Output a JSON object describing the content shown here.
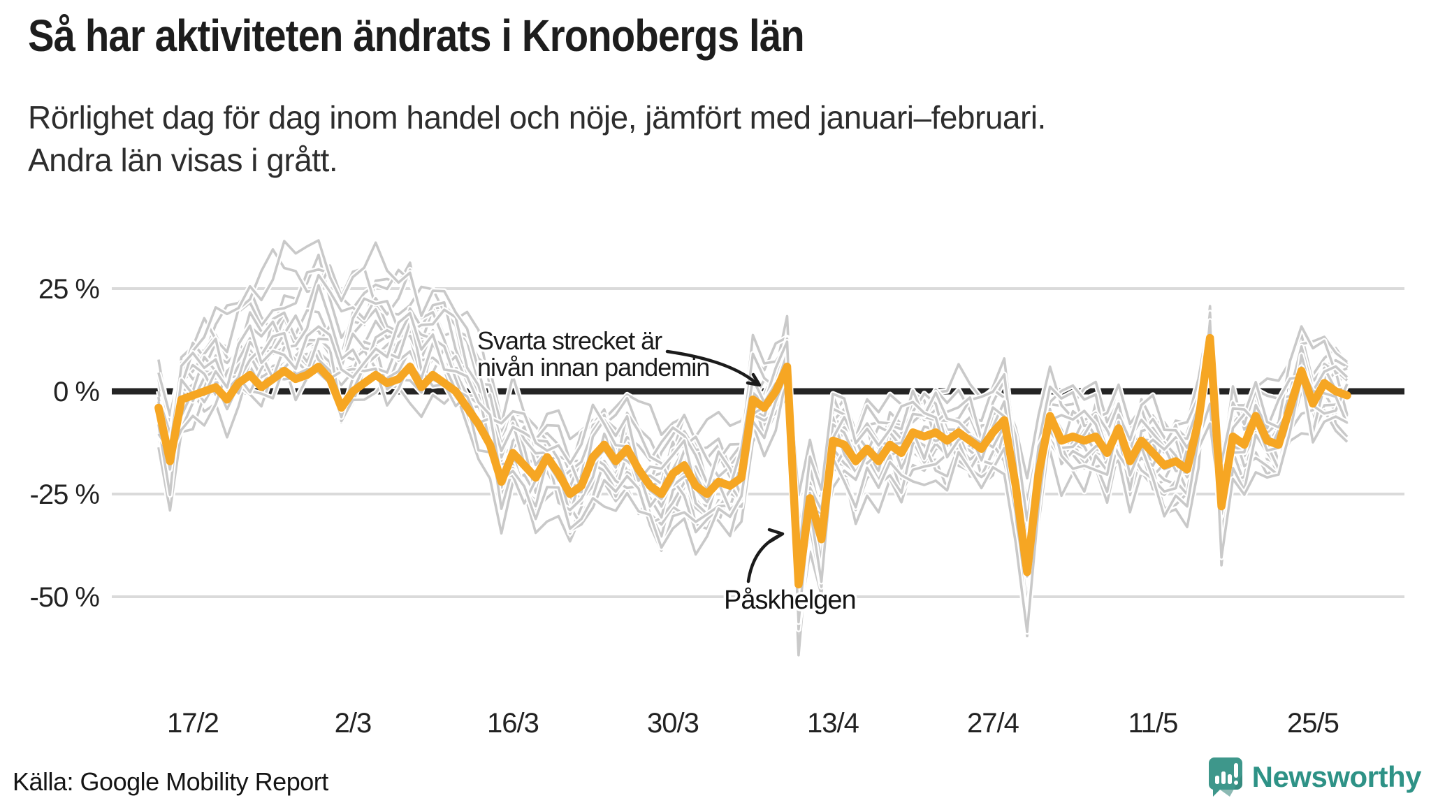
{
  "header": {
    "title": "Så har aktiviteten ändrats i Kronobergs län",
    "subtitle_line1": "Rörlighet dag för dag inom handel och nöje, jämfört med januari–februari.",
    "subtitle_line2": "Andra län visas i grått."
  },
  "footer": {
    "source": "Källa: Google Mobility Report",
    "brand": "Newsworthy"
  },
  "colors": {
    "highlight": "#F6A623",
    "other_lines": "#C9C9C9",
    "baseline": "#242424",
    "gridline": "#DADADA",
    "text": "#222222",
    "brand_teal": "#3E978B",
    "brand_teal_dark": "#2E7F74"
  },
  "chart_data": {
    "type": "line",
    "title": "Så har aktiviteten ändrats i Kronobergs län",
    "subtitle": "Rörlighet dag för dag inom handel och nöje, jämfört med januari–februari. Andra län visas i grått.",
    "unit": "%",
    "start_date": "2020-02-14",
    "x_ticks": {
      "labels": [
        "17/2",
        "2/3",
        "16/3",
        "30/3",
        "13/4",
        "27/4",
        "11/5",
        "25/5"
      ],
      "day_indices": [
        3,
        17,
        31,
        45,
        59,
        73,
        87,
        101
      ]
    },
    "y_ticks": {
      "labels": [
        "25 %",
        "0 %",
        "-25 %",
        "-50 %"
      ],
      "values": [
        25,
        0,
        -25,
        -50
      ]
    },
    "ylim": [
      -70,
      40
    ],
    "baseline_value": 0,
    "grid": "horizontal-only",
    "legend": "none",
    "highlight_series": {
      "name": "Kronobergs län",
      "values": [
        -4,
        -17,
        -2,
        -1,
        0,
        1,
        -2,
        2,
        4,
        1,
        3,
        5,
        3,
        4,
        6,
        3,
        -4,
        0,
        2,
        4,
        2,
        3,
        6,
        1,
        4,
        2,
        0,
        -4,
        -8,
        -13,
        -22,
        -15,
        -18,
        -21,
        -16,
        -20,
        -25,
        -23,
        -16,
        -13,
        -17,
        -14,
        -19,
        -23,
        -25,
        -20,
        -18,
        -23,
        -25,
        -22,
        -23,
        -21,
        -2,
        -4,
        0,
        6,
        -47,
        -26,
        -36,
        -12,
        -13,
        -17,
        -14,
        -17,
        -13,
        -15,
        -10,
        -11,
        -10,
        -12,
        -10,
        -12,
        -14,
        -10,
        -7,
        -23,
        -44,
        -20,
        -6,
        -12,
        -11,
        -12,
        -11,
        -15,
        -9,
        -17,
        -12,
        -15,
        -18,
        -17,
        -19,
        -7,
        13,
        -28,
        -11,
        -13,
        -6,
        -12,
        -13,
        -4,
        5,
        -3,
        2,
        0,
        -1
      ]
    },
    "other_counties": {
      "label": "Andra län",
      "count": 20,
      "line_params": [
        [
          1.05,
          2,
          9,
          22,
          1
        ],
        [
          0.85,
          4,
          7,
          10,
          2
        ],
        [
          1.25,
          -2,
          8,
          4,
          3
        ],
        [
          0.7,
          6,
          6,
          16,
          4
        ],
        [
          1.1,
          -4,
          7,
          2,
          5
        ],
        [
          0.9,
          0,
          10,
          26,
          6
        ],
        [
          1.3,
          1,
          6,
          0,
          7
        ],
        [
          0.8,
          -6,
          8,
          12,
          8
        ],
        [
          1.0,
          5,
          9,
          6,
          9
        ],
        [
          1.15,
          -1,
          7,
          18,
          10
        ],
        [
          0.75,
          2,
          6,
          8,
          11
        ],
        [
          1.2,
          3,
          9,
          2,
          12
        ],
        [
          0.95,
          -3,
          8,
          14,
          13
        ],
        [
          1.35,
          0,
          6,
          6,
          14
        ],
        [
          0.65,
          -5,
          9,
          20,
          15
        ],
        [
          1.05,
          6,
          7,
          0,
          16
        ],
        [
          0.9,
          -2,
          10,
          10,
          17
        ],
        [
          1.15,
          4,
          6,
          24,
          18
        ],
        [
          0.8,
          1,
          8,
          4,
          19
        ],
        [
          1.25,
          -4,
          7,
          14,
          20
        ]
      ]
    },
    "annotations": [
      {
        "id": "baseline-note",
        "text_lines": [
          "Svarta strecket är",
          "nivån innan pandemin"
        ],
        "points_at": "zero-baseline"
      },
      {
        "id": "easter-note",
        "text_lines": [
          "Påskhelgen"
        ],
        "points_at": "easter-dip"
      }
    ]
  }
}
